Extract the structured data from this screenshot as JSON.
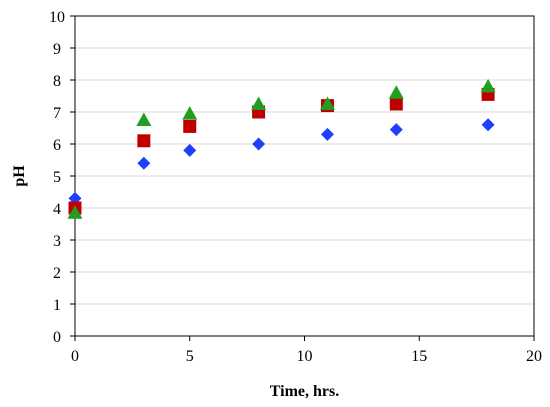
{
  "chart_data": {
    "type": "scatter",
    "title": "",
    "xlabel": "Time, hrs.",
    "ylabel": "pH",
    "xlim": [
      0,
      20
    ],
    "ylim": [
      0,
      10
    ],
    "x_ticks": [
      "0",
      "5",
      "10",
      "15",
      "20"
    ],
    "y_ticks": [
      "0",
      "1",
      "2",
      "3",
      "4",
      "5",
      "6",
      "7",
      "8",
      "9",
      "10"
    ],
    "grid": "horizontal",
    "legend": "none",
    "series": [
      {
        "marker": "diamond",
        "color": "#1f3fff",
        "x": [
          0,
          3,
          5,
          8,
          11,
          14,
          18
        ],
        "y": [
          4.3,
          5.4,
          5.8,
          6.0,
          6.3,
          6.45,
          6.6
        ]
      },
      {
        "marker": "square",
        "color": "#c00000",
        "x": [
          0,
          3,
          5,
          8,
          11,
          14,
          18
        ],
        "y": [
          4.0,
          6.1,
          6.55,
          7.0,
          7.2,
          7.25,
          7.55
        ]
      },
      {
        "marker": "triangle",
        "color": "#1f9e1f",
        "x": [
          0,
          3,
          5,
          8,
          11,
          14,
          18
        ],
        "y": [
          3.85,
          6.75,
          6.95,
          7.25,
          7.25,
          7.6,
          7.8
        ]
      }
    ]
  }
}
